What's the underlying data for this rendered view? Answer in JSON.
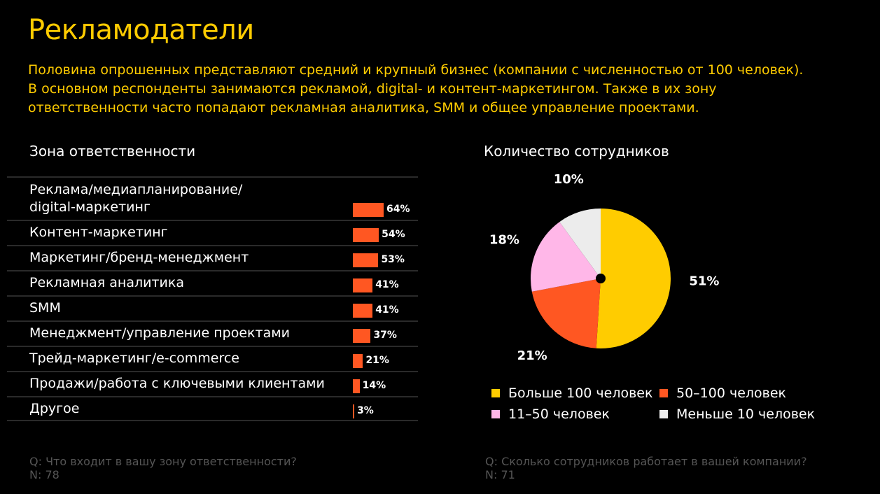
{
  "title": "Рекламодатели",
  "intro": [
    "Половина опрошенных представляют средний и крупный бизнес (компании с численностью от 100 человек).",
    "В основном респонденты занимаются рекламой, digital- и контент-маркетингом. Также в их зону",
    "ответственности часто попадают рекламная аналитика, SMM и общее управление проектами."
  ],
  "colors": {
    "accent": "#ffcc00",
    "bar": "#ff5722",
    "pie": [
      "#ffcc00",
      "#ff5722",
      "#ffb7e8",
      "#ececec"
    ]
  },
  "chart_data": [
    {
      "type": "bar",
      "title": "Зона ответственности",
      "categories": [
        "Реклама/медиапланирование/\ndigital-маркетинг",
        "Контент-маркетинг",
        "Маркетинг/бренд-менеджмент",
        "Рекламная аналитика",
        "SMM",
        "Менеджмент/управление проектами",
        "Трейд-маркетинг/e-commerce",
        "Продажи/работа с ключевыми клиентами",
        "Другое"
      ],
      "values": [
        64,
        54,
        53,
        41,
        41,
        37,
        21,
        14,
        3
      ],
      "value_labels": [
        "64%",
        "54%",
        "53%",
        "41%",
        "41%",
        "37%",
        "21%",
        "14%",
        "3%"
      ],
      "unit": "%"
    },
    {
      "type": "pie",
      "title": "Количество сотрудников",
      "categories": [
        "Больше 100 человек",
        "50–100 человек",
        "11–50 человек",
        "Меньше 10 человек"
      ],
      "values": [
        51,
        21,
        18,
        10
      ],
      "value_labels": [
        "51%",
        "21%",
        "18%",
        "10%"
      ],
      "legend": "bottom"
    }
  ],
  "footnotes": {
    "left": {
      "question": "Q: Что входит в вашу зону ответственности?",
      "n": "N: 78"
    },
    "right": {
      "question": "Q: Сколько сотрудников работает в вашей компании?",
      "n": "N: 71"
    }
  }
}
